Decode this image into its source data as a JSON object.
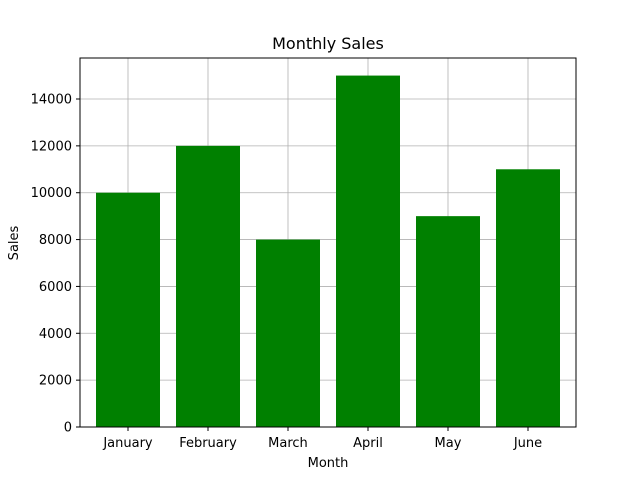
{
  "chart_data": {
    "type": "bar",
    "title": "Monthly Sales",
    "xlabel": "Month",
    "ylabel": "Sales",
    "categories": [
      "January",
      "February",
      "March",
      "April",
      "May",
      "June"
    ],
    "values": [
      10000,
      12000,
      8000,
      15000,
      9000,
      11000
    ],
    "ylim": [
      0,
      15750
    ],
    "yticks": [
      0,
      2000,
      4000,
      6000,
      8000,
      10000,
      12000,
      14000
    ],
    "grid": true,
    "legend": "none",
    "bar_color": "#008000",
    "grid_color": "#b0b0b0",
    "axis_color": "#000000"
  }
}
